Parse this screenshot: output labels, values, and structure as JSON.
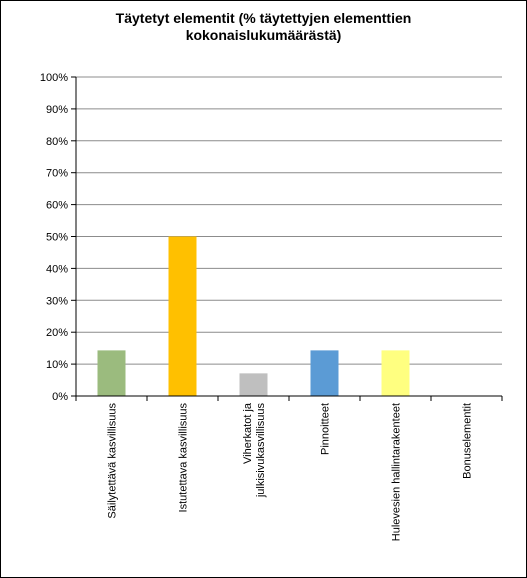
{
  "chart_data": {
    "type": "bar",
    "title_lines": [
      "Täytetyt elementit (% täytettyjen elementtien",
      "kokonaislukumäärästä)"
    ],
    "categories": [
      [
        "Säilytettävä kasvillisuus"
      ],
      [
        "Istutettava kasvillisuus"
      ],
      [
        "Viherkatot ja",
        "julkisivukasvillisuus"
      ],
      [
        "Pinnoitteet"
      ],
      [
        "Hulevesien hallintarakenteet"
      ],
      [
        "Bonuselementit"
      ]
    ],
    "values": [
      14.3,
      50.0,
      7.1,
      14.3,
      14.3,
      0
    ],
    "colors": [
      "#9bbb7e",
      "#ffc000",
      "#bfbfbf",
      "#5b9bd5",
      "#ffff80",
      "#ffffff"
    ],
    "yticks": [
      "0%",
      "10%",
      "20%",
      "30%",
      "40%",
      "50%",
      "60%",
      "70%",
      "80%",
      "90%",
      "100%"
    ],
    "ylim": [
      0,
      100
    ],
    "grid": true,
    "legend": false
  }
}
